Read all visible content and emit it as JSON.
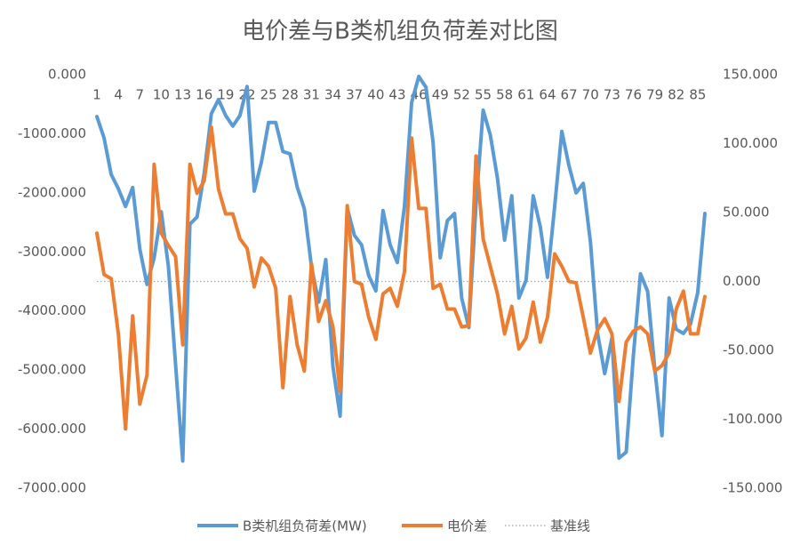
{
  "chart_data": {
    "type": "line",
    "title": "电价差与B类机组负荷差对比图",
    "x": [
      1,
      2,
      3,
      4,
      5,
      6,
      7,
      8,
      9,
      10,
      11,
      12,
      13,
      14,
      15,
      16,
      17,
      18,
      19,
      20,
      21,
      22,
      23,
      24,
      25,
      26,
      27,
      28,
      29,
      30,
      31,
      32,
      33,
      34,
      35,
      36,
      37,
      38,
      39,
      40,
      41,
      42,
      43,
      44,
      45,
      46,
      47,
      48,
      49,
      50,
      51,
      52,
      53,
      54,
      55,
      56,
      57,
      58,
      59,
      60,
      61,
      62,
      63,
      64,
      65,
      66,
      67,
      68,
      69,
      70,
      71,
      72,
      73,
      74,
      75,
      76,
      77,
      78,
      79,
      80,
      81,
      82,
      83,
      84,
      85,
      86
    ],
    "xlim": [
      0.5,
      86.5
    ],
    "xticks": [
      1,
      4,
      7,
      10,
      13,
      16,
      19,
      22,
      25,
      28,
      31,
      34,
      37,
      40,
      43,
      46,
      49,
      52,
      55,
      58,
      61,
      64,
      67,
      70,
      73,
      76,
      79,
      82,
      85
    ],
    "ylim": [
      -7000,
      0
    ],
    "yticks": [
      {
        "value": -7000,
        "label": "-7000.000"
      },
      {
        "value": -6000,
        "label": "-6000.000"
      },
      {
        "value": -5000,
        "label": "-5000.000"
      },
      {
        "value": -4000,
        "label": "-4000.000"
      },
      {
        "value": -3000,
        "label": "-3000.000"
      },
      {
        "value": -2000,
        "label": "-2000.000"
      },
      {
        "value": -1000,
        "label": "-1000.000"
      },
      {
        "value": 0,
        "label": "0.000"
      }
    ],
    "y2lim": [
      -150,
      150
    ],
    "y2ticks": [
      {
        "value": -150,
        "label": "-150.000"
      },
      {
        "value": -100,
        "label": "-100.000"
      },
      {
        "value": -50,
        "label": "-50.000"
      },
      {
        "value": 0,
        "label": "0.000"
      },
      {
        "value": 50,
        "label": "50.000"
      },
      {
        "value": 100,
        "label": "100.000"
      },
      {
        "value": 150,
        "label": "150.000"
      }
    ],
    "grid": false,
    "legend": "bottom",
    "series": [
      {
        "name": "B类机组负荷差(MW)",
        "color": "#5b9bd5",
        "values": [
          -710,
          -1070,
          -1690,
          -1930,
          -2230,
          -1910,
          -2950,
          -3550,
          -3100,
          -2320,
          -3250,
          -4910,
          -6540,
          -2530,
          -2410,
          -1670,
          -660,
          -420,
          -690,
          -870,
          -690,
          -200,
          -1970,
          -1480,
          -810,
          -810,
          -1300,
          -1340,
          -1900,
          -2270,
          -3250,
          -3850,
          -3130,
          -4940,
          -5780,
          -2260,
          -2720,
          -2880,
          -3400,
          -3660,
          -2300,
          -2880,
          -3180,
          -2230,
          -470,
          -30,
          -210,
          -1140,
          -3100,
          -2470,
          -2350,
          -3780,
          -4280,
          -2200,
          -600,
          -1020,
          -1750,
          -2800,
          -2050,
          -3780,
          -3480,
          -2050,
          -2580,
          -3430,
          -2230,
          -960,
          -1540,
          -2000,
          -1840,
          -2830,
          -4380,
          -5060,
          -4460,
          -6490,
          -6390,
          -4760,
          -3370,
          -3670,
          -4980,
          -6110,
          -3780,
          -4310,
          -4380,
          -4220,
          -3690,
          -2350
        ]
      },
      {
        "name": "电价差",
        "color": "#ed7d31",
        "axis": "y2",
        "values": [
          35,
          5,
          2,
          -38,
          -107,
          -25,
          -89,
          -68,
          85,
          35,
          26,
          18,
          -46,
          85,
          64,
          73,
          112,
          67,
          49,
          49,
          31,
          24,
          -4,
          17,
          11,
          -5,
          -77,
          -11,
          -46,
          -65,
          13,
          -29,
          -14,
          -33,
          -80,
          55,
          0,
          -2,
          -26,
          -42,
          -9,
          -5,
          -18,
          7,
          104,
          53,
          53,
          -5,
          -2,
          -20,
          -20,
          -33,
          -32,
          91,
          31,
          11,
          -9,
          -38,
          -18,
          -49,
          -41,
          -15,
          -44,
          -26,
          20,
          11,
          0,
          -1,
          -26,
          -52,
          -35,
          -27,
          -38,
          -87,
          -44,
          -36,
          -33,
          -38,
          -65,
          -61,
          -52,
          -20,
          -7,
          -38,
          -38,
          -11
        ]
      },
      {
        "name": "基准线",
        "color": "#a5a5a5",
        "axis": "y2",
        "dash": "dotted",
        "values": [
          0,
          0,
          0,
          0,
          0,
          0,
          0,
          0,
          0,
          0,
          0,
          0,
          0,
          0,
          0,
          0,
          0,
          0,
          0,
          0,
          0,
          0,
          0,
          0,
          0,
          0,
          0,
          0,
          0,
          0,
          0,
          0,
          0,
          0,
          0,
          0,
          0,
          0,
          0,
          0,
          0,
          0,
          0,
          0,
          0,
          0,
          0,
          0,
          0,
          0,
          0,
          0,
          0,
          0,
          0,
          0,
          0,
          0,
          0,
          0,
          0,
          0,
          0,
          0,
          0,
          0,
          0,
          0,
          0,
          0,
          0,
          0,
          0,
          0,
          0,
          0,
          0,
          0,
          0,
          0,
          0,
          0,
          0,
          0,
          0,
          0
        ]
      }
    ]
  }
}
